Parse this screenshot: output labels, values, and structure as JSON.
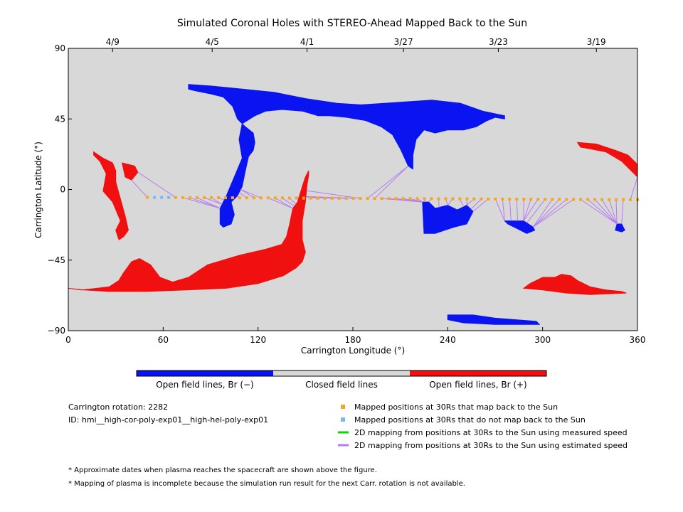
{
  "chart_data": {
    "type": "map",
    "title": "Simulated Coronal Holes with STEREO-Ahead Mapped Back to the Sun",
    "xlabel": "Carrington Longitude (°)",
    "ylabel": "Carrington Latitude (°)",
    "xlim": [
      0,
      360
    ],
    "ylim": [
      -90,
      90
    ],
    "x_ticks": [
      0,
      60,
      120,
      180,
      240,
      300,
      360
    ],
    "y_ticks": [
      90,
      45,
      0,
      -45,
      -90
    ],
    "top_axis": {
      "label_note": "dates",
      "ticks": [
        {
          "lon": 28,
          "label": "4/9"
        },
        {
          "lon": 91,
          "label": "4/5"
        },
        {
          "lon": 151,
          "label": "4/1"
        },
        {
          "lon": 212,
          "label": "3/27"
        },
        {
          "lon": 272,
          "label": "3/23"
        },
        {
          "lon": 334,
          "label": "3/19"
        }
      ]
    },
    "colorbar": [
      {
        "label": "Open field lines, Br (−)",
        "color": "#0a14f0"
      },
      {
        "label": "Closed field lines",
        "color": "#d8d8d8"
      },
      {
        "label": "Open field lines, Br (+)",
        "color": "#f01010"
      }
    ],
    "mapped_points": {
      "lon_start": 50,
      "lon_end": 360,
      "lat_start": -5,
      "lat_end": -6.5,
      "count": 70,
      "not_mapped_lon_range": [
        52,
        64
      ]
    },
    "coronal_holes_negative": [
      [
        [
          76,
          67
        ],
        [
          90,
          66
        ],
        [
          110,
          64
        ],
        [
          130,
          62
        ],
        [
          150,
          58
        ],
        [
          170,
          55
        ],
        [
          185,
          54
        ],
        [
          200,
          55
        ],
        [
          215,
          56
        ],
        [
          230,
          57
        ],
        [
          248,
          55
        ],
        [
          262,
          50
        ],
        [
          276,
          47
        ],
        [
          276,
          45
        ],
        [
          270,
          46
        ],
        [
          265,
          44
        ],
        [
          258,
          40
        ],
        [
          250,
          38
        ],
        [
          240,
          38
        ],
        [
          232,
          36
        ],
        [
          225,
          38
        ],
        [
          220,
          32
        ],
        [
          218,
          22
        ],
        [
          218,
          13
        ],
        [
          215,
          15
        ],
        [
          210,
          26
        ],
        [
          205,
          35
        ],
        [
          198,
          40
        ],
        [
          188,
          44
        ],
        [
          176,
          46
        ],
        [
          165,
          47
        ],
        [
          158,
          47
        ],
        [
          148,
          50
        ],
        [
          135,
          51
        ],
        [
          125,
          50
        ],
        [
          118,
          47
        ],
        [
          110,
          42
        ],
        [
          108,
          32
        ],
        [
          110,
          20
        ],
        [
          105,
          8
        ],
        [
          100,
          -4
        ],
        [
          96,
          -12
        ],
        [
          96,
          -22
        ],
        [
          98,
          -24
        ],
        [
          103,
          -22
        ],
        [
          105,
          -16
        ],
        [
          103,
          -8
        ],
        [
          107,
          -4
        ],
        [
          110,
          2
        ],
        [
          112,
          12
        ],
        [
          114,
          21
        ],
        [
          117,
          25
        ],
        [
          118,
          30
        ],
        [
          117,
          36
        ],
        [
          112,
          40
        ],
        [
          107,
          45
        ],
        [
          104,
          53
        ],
        [
          98,
          59
        ],
        [
          90,
          61
        ],
        [
          80,
          63
        ],
        [
          76,
          64
        ]
      ],
      [
        [
          224,
          -8
        ],
        [
          225,
          -28
        ],
        [
          232,
          -28
        ],
        [
          238,
          -26
        ],
        [
          244,
          -24
        ],
        [
          252,
          -22
        ],
        [
          256,
          -14
        ],
        [
          252,
          -10
        ],
        [
          246,
          -13
        ],
        [
          240,
          -10
        ],
        [
          232,
          -12
        ],
        [
          228,
          -8
        ]
      ],
      [
        [
          276,
          -20
        ],
        [
          288,
          -20
        ],
        [
          294,
          -24
        ],
        [
          295,
          -26
        ],
        [
          290,
          -28
        ],
        [
          284,
          -25
        ],
        [
          278,
          -22
        ]
      ],
      [
        [
          240,
          -80
        ],
        [
          256,
          -80
        ],
        [
          270,
          -82
        ],
        [
          296,
          -84
        ],
        [
          298,
          -86
        ],
        [
          270,
          -86
        ],
        [
          250,
          -85
        ],
        [
          240,
          -83
        ]
      ],
      [
        [
          347,
          -22
        ],
        [
          350,
          -22
        ],
        [
          352,
          -26
        ],
        [
          350,
          -27
        ],
        [
          346,
          -26
        ]
      ]
    ],
    "coronal_holes_positive": [
      [
        [
          16,
          24
        ],
        [
          22,
          20
        ],
        [
          28,
          17
        ],
        [
          30,
          12
        ],
        [
          30,
          5
        ],
        [
          33,
          -6
        ],
        [
          36,
          -17
        ],
        [
          38,
          -26
        ],
        [
          35,
          -30
        ],
        [
          32,
          -32
        ],
        [
          30,
          -26
        ],
        [
          33,
          -20
        ],
        [
          28,
          -8
        ],
        [
          22,
          -1
        ],
        [
          24,
          10
        ],
        [
          20,
          18
        ],
        [
          16,
          22
        ]
      ],
      [
        [
          34,
          17
        ],
        [
          42,
          15
        ],
        [
          44,
          11
        ],
        [
          40,
          6
        ],
        [
          36,
          8
        ]
      ],
      [
        [
          0,
          -63
        ],
        [
          8,
          -64
        ],
        [
          18,
          -63
        ],
        [
          26,
          -62
        ],
        [
          32,
          -58
        ],
        [
          35,
          -53
        ],
        [
          40,
          -46
        ],
        [
          45,
          -44
        ],
        [
          52,
          -48
        ],
        [
          58,
          -56
        ],
        [
          66,
          -59
        ],
        [
          76,
          -56
        ],
        [
          88,
          -48
        ],
        [
          108,
          -42
        ],
        [
          125,
          -38
        ],
        [
          135,
          -35
        ],
        [
          138,
          -30
        ],
        [
          140,
          -22
        ],
        [
          142,
          -12
        ],
        [
          145,
          -8
        ],
        [
          148,
          2
        ],
        [
          150,
          8
        ],
        [
          152,
          12
        ],
        [
          152,
          9
        ],
        [
          151,
          3
        ],
        [
          150,
          -8
        ],
        [
          148,
          -20
        ],
        [
          148,
          -32
        ],
        [
          150,
          -40
        ],
        [
          148,
          -46
        ],
        [
          144,
          -50
        ],
        [
          136,
          -55
        ],
        [
          120,
          -60
        ],
        [
          100,
          -63
        ],
        [
          75,
          -64
        ],
        [
          50,
          -65
        ],
        [
          25,
          -65
        ],
        [
          10,
          -64
        ],
        [
          0,
          -63
        ]
      ],
      [
        [
          300,
          -56
        ],
        [
          308,
          -56
        ],
        [
          312,
          -54
        ],
        [
          318,
          -55
        ],
        [
          322,
          -58
        ],
        [
          330,
          -62
        ],
        [
          340,
          -64
        ],
        [
          350,
          -65
        ],
        [
          353,
          -66
        ],
        [
          330,
          -67
        ],
        [
          315,
          -66
        ],
        [
          300,
          -64
        ],
        [
          288,
          -63
        ],
        [
          292,
          -60
        ],
        [
          296,
          -58
        ]
      ],
      [
        [
          322,
          30
        ],
        [
          334,
          29
        ],
        [
          346,
          25
        ],
        [
          354,
          22
        ],
        [
          360,
          16
        ],
        [
          360,
          8
        ],
        [
          356,
          12
        ],
        [
          350,
          18
        ],
        [
          340,
          24
        ],
        [
          330,
          26
        ],
        [
          324,
          27
        ]
      ]
    ]
  },
  "info": {
    "carrington_rotation": "Carrington rotation: 2282",
    "run_id": "ID: hmi__high-cor-poly-exp01__high-hel-poly-exp01"
  },
  "legend": {
    "mapped_back": {
      "label": "Mapped positions at 30Rs that map back to the Sun",
      "color": "#f5a623"
    },
    "not_mapped_back": {
      "label": "Mapped positions at 30Rs that do not map back to the Sun",
      "color": "#7ab8f5"
    },
    "measured_speed": {
      "label": "2D mapping from positions at 30Rs to the Sun using measured speed",
      "color": "#00dd00"
    },
    "estimated_speed": {
      "label": "2D mapping from positions at 30Rs to the Sun using estimated speed",
      "color": "#b57df0"
    }
  },
  "footnotes": {
    "dates_note": "* Approximate dates when plasma reaches the spacecraft are shown above the figure.",
    "mapping_note": "* Mapping of plasma is incomplete because the simulation run result for the next Carr. rotation is not available."
  }
}
